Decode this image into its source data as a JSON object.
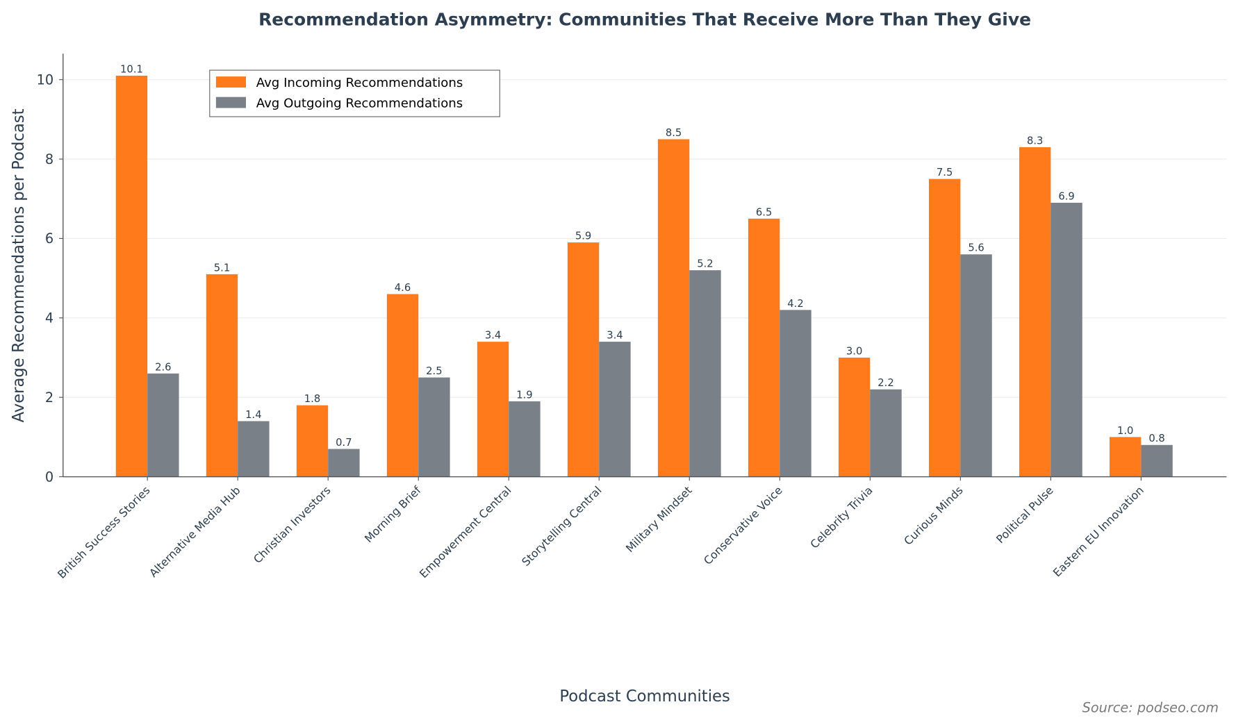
{
  "chart_data": {
    "type": "bar",
    "title": "Recommendation Asymmetry: Communities That Receive More Than They Give",
    "xlabel": "Podcast Communities",
    "ylabel": "Average Recommendations per Podcast",
    "ylim": [
      0,
      10.6
    ],
    "yticks": [
      0,
      2,
      4,
      6,
      8,
      10
    ],
    "grid": "y",
    "legend_position": "top-left",
    "categories": [
      "British Success Stories",
      "Alternative Media Hub",
      "Christian Investors",
      "Morning Brief",
      "Empowerment Central",
      "Storytelling Central",
      "Military Mindset",
      "Conservative Voice",
      "Celebrity Trivia",
      "Curious Minds",
      "Political Pulse",
      "Eastern EU Innovation"
    ],
    "series": [
      {
        "name": "Avg Incoming Recommendations",
        "color": "#ff7a1a",
        "values": [
          10.1,
          5.1,
          1.8,
          4.6,
          3.4,
          5.9,
          8.5,
          6.5,
          3.0,
          7.5,
          8.3,
          1.0
        ]
      },
      {
        "name": "Avg Outgoing Recommendations",
        "color": "#7a8087",
        "values": [
          2.6,
          1.4,
          0.7,
          2.5,
          1.9,
          3.4,
          5.2,
          4.2,
          2.2,
          5.6,
          6.9,
          0.8
        ]
      }
    ],
    "source": "Source: podseo.com"
  }
}
